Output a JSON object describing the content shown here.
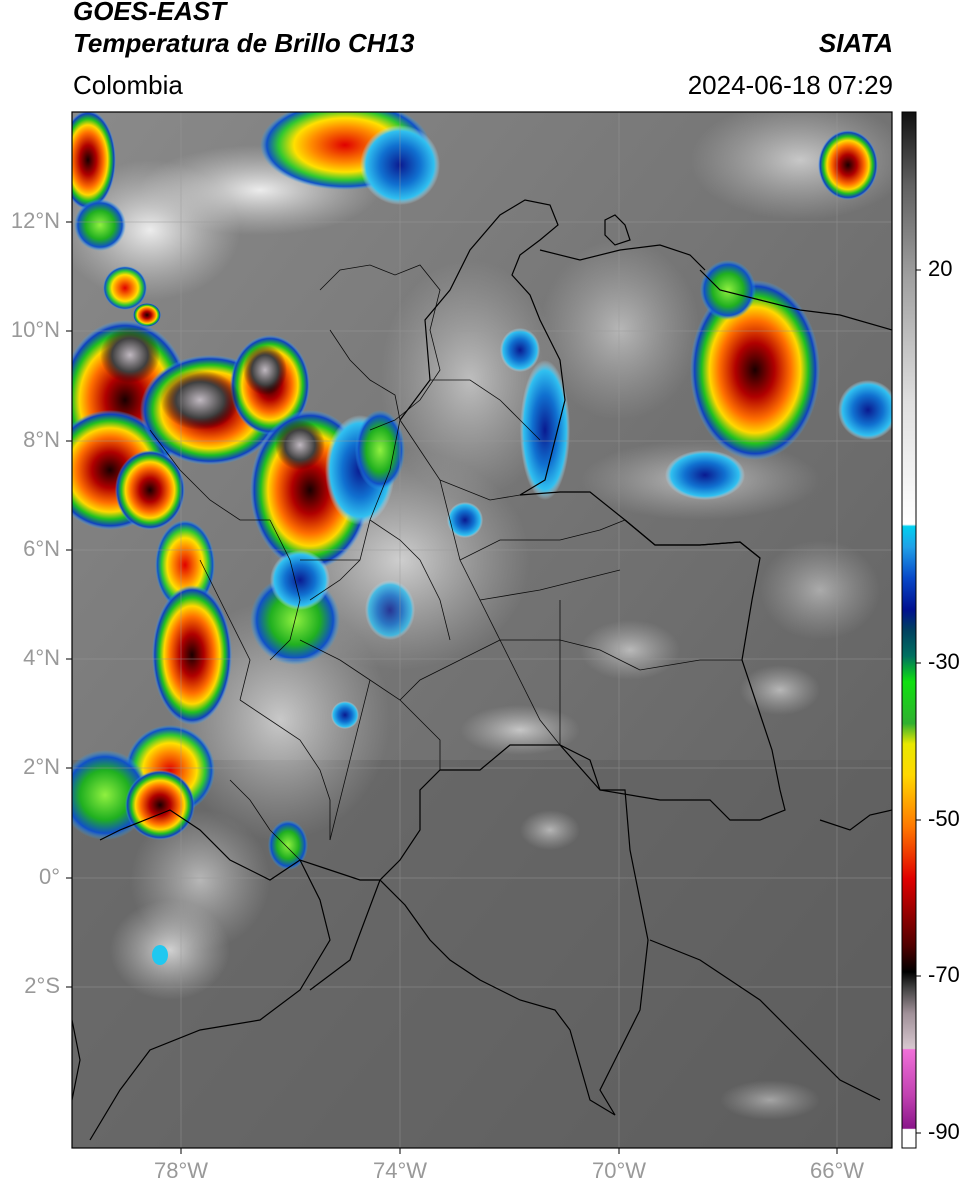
{
  "header": {
    "satellite": "GOES-EAST",
    "product": "Temperatura de Brillo CH13",
    "region": "Colombia",
    "agency": "SIATA",
    "datetime": "2024-06-18 07:29"
  },
  "map": {
    "lon_range": [
      -80,
      -65
    ],
    "lat_range": [
      -5,
      14
    ],
    "lat_ticks": [
      "12°N",
      "10°N",
      "8°N",
      "6°N",
      "4°N",
      "2°N",
      "0°",
      "2°S"
    ],
    "lon_ticks": [
      "78°W",
      "74°W",
      "70°W",
      "66°W"
    ]
  },
  "colorbar": {
    "ticks": [
      "20",
      "-30",
      "-50",
      "-70",
      "-90"
    ],
    "colors": [
      "#ffffff",
      "#9a1a9a",
      "#e070d0",
      "#d0a8c0",
      "#101010",
      "#700000",
      "#e00000",
      "#ff8000",
      "#ffd000",
      "#00b000",
      "#40e040",
      "#004040",
      "#0010a0",
      "#20a0ff",
      "#00c8e8",
      "#f8f8f8",
      "#808080",
      "#202020"
    ]
  }
}
